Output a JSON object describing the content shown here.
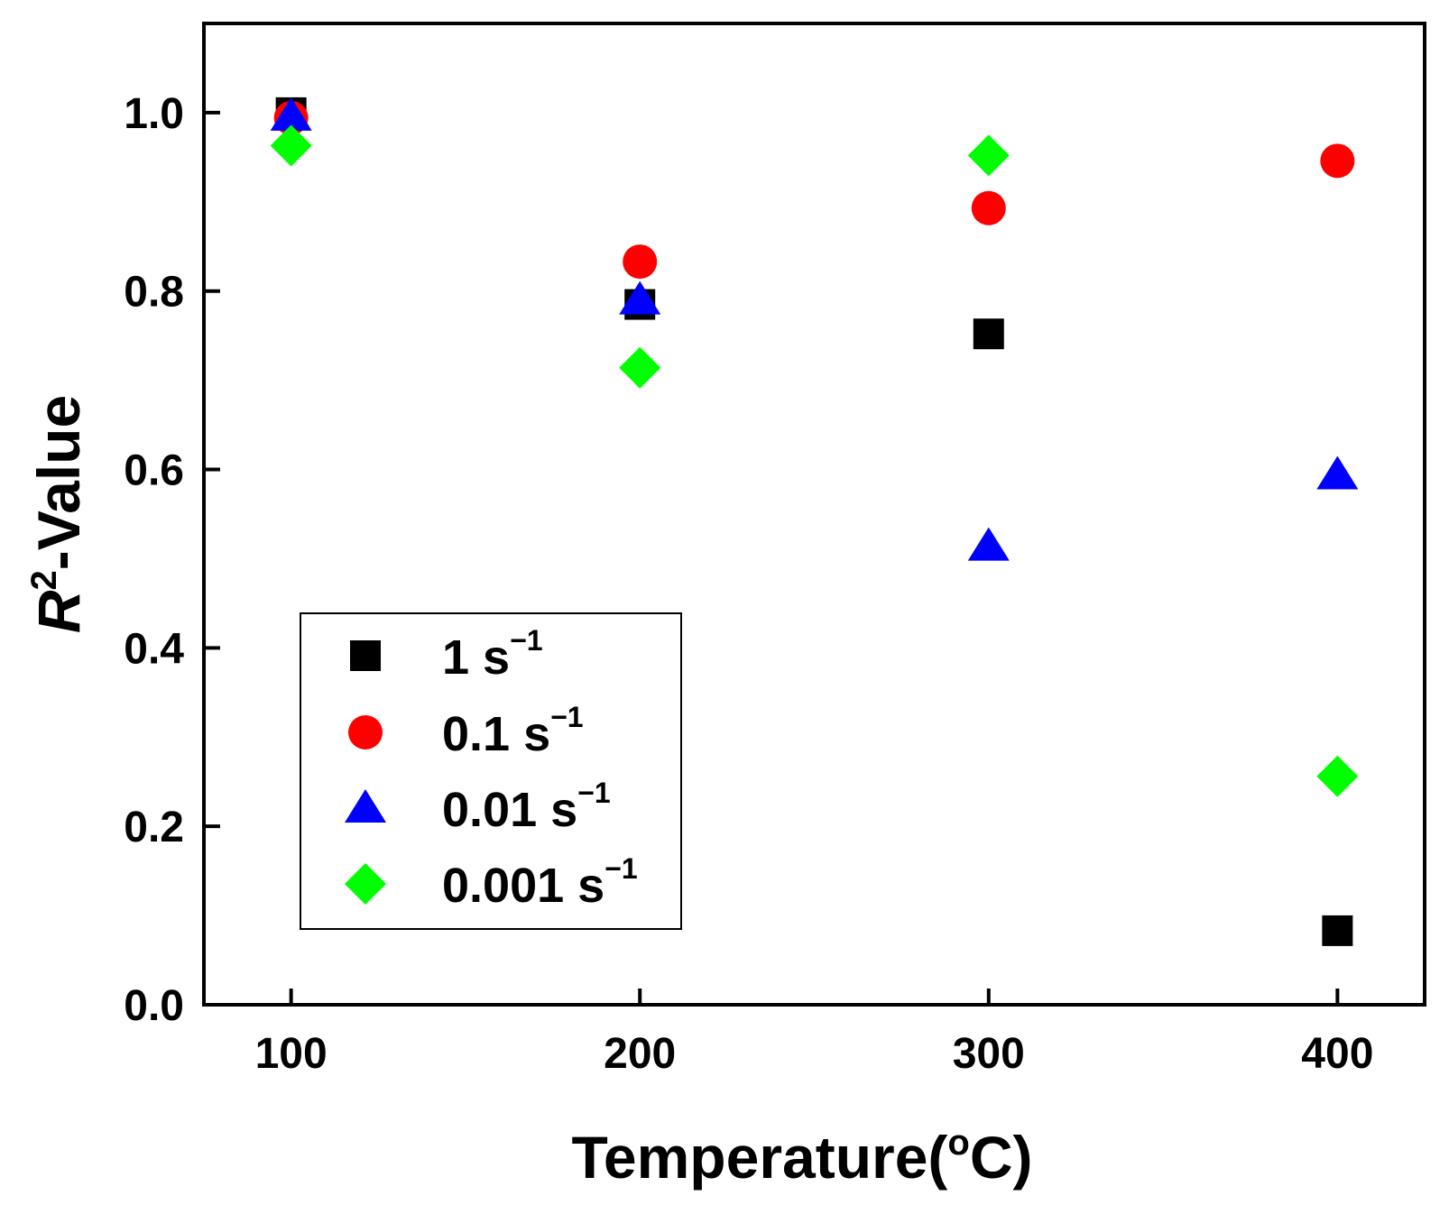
{
  "chart_data": {
    "type": "scatter",
    "title": "",
    "xlabel": "Temperature(",
    "xlabel_degree": "o",
    "xlabel_suffix": "C)",
    "ylabel_base": "R",
    "ylabel_superscript": "2",
    "ylabel_suffix": "-Value",
    "xlim": [
      75,
      425
    ],
    "ylim": [
      0.0,
      1.1
    ],
    "xticks": [
      100,
      200,
      300,
      400
    ],
    "xtick_labels": [
      "100",
      "200",
      "300",
      "400"
    ],
    "yticks": [
      0.0,
      0.2,
      0.4,
      0.6,
      0.8,
      1.0
    ],
    "ytick_labels": [
      "0.0",
      "0.2",
      "0.4",
      "0.6",
      "0.8",
      "1.0"
    ],
    "grid": false,
    "legend_position": "lower-left",
    "x": [
      100,
      200,
      300,
      400
    ],
    "series": [
      {
        "name": "1 s",
        "unit_exponent": "−1",
        "marker": "square",
        "color": "#000000",
        "values": [
          1.0,
          0.785,
          0.752,
          0.083
        ]
      },
      {
        "name": "0.1 s",
        "unit_exponent": "−1",
        "marker": "circle",
        "color": "#ff0000",
        "values": [
          0.994,
          0.833,
          0.893,
          0.946
        ]
      },
      {
        "name": "0.01 s",
        "unit_exponent": "−1",
        "marker": "triangle",
        "color": "#0000ff",
        "values": [
          0.996,
          0.79,
          0.514,
          0.594
        ]
      },
      {
        "name": "0.001 s",
        "unit_exponent": "−1",
        "marker": "diamond",
        "color": "#00ff00",
        "values": [
          0.963,
          0.714,
          0.952,
          0.256
        ]
      }
    ]
  }
}
